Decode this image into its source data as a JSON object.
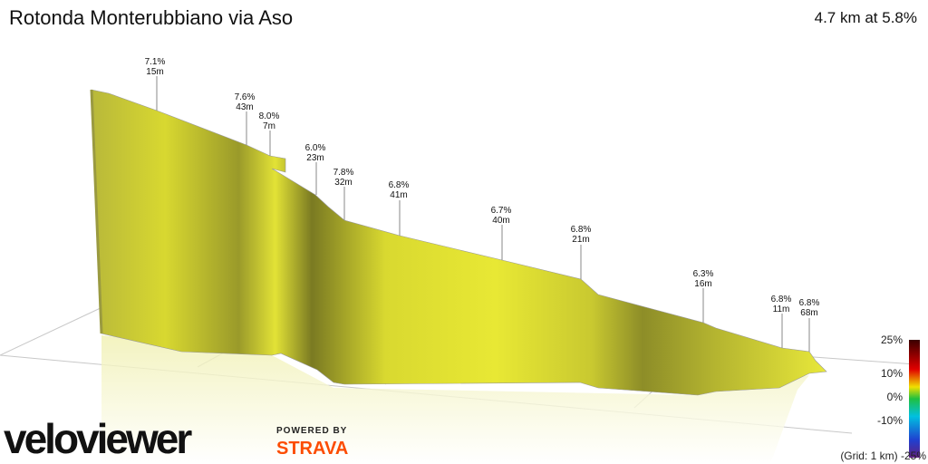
{
  "header": {
    "title": "Rotonda Monterubbiano via Aso",
    "summary": "4.7 km at 5.8%"
  },
  "annotations": [
    {
      "grade": "7.1%",
      "length": "15m"
    },
    {
      "grade": "7.6%",
      "length": "43m"
    },
    {
      "grade": "8.0%",
      "length": "7m"
    },
    {
      "grade": "6.0%",
      "length": "23m"
    },
    {
      "grade": "7.8%",
      "length": "32m"
    },
    {
      "grade": "6.8%",
      "length": "41m"
    },
    {
      "grade": "6.7%",
      "length": "40m"
    },
    {
      "grade": "6.8%",
      "length": "21m"
    },
    {
      "grade": "6.3%",
      "length": "16m"
    },
    {
      "grade": "6.8%",
      "length": "11m"
    },
    {
      "grade": "6.8%",
      "length": "68m"
    }
  ],
  "scale": {
    "labels": [
      "25%",
      "10%",
      "0%",
      "-10%"
    ],
    "footer": "(Grid: 1 km) -25%"
  },
  "branding": {
    "logo": "veloviewer",
    "powered": "POWERED BY",
    "partner": "STRAVA"
  }
}
